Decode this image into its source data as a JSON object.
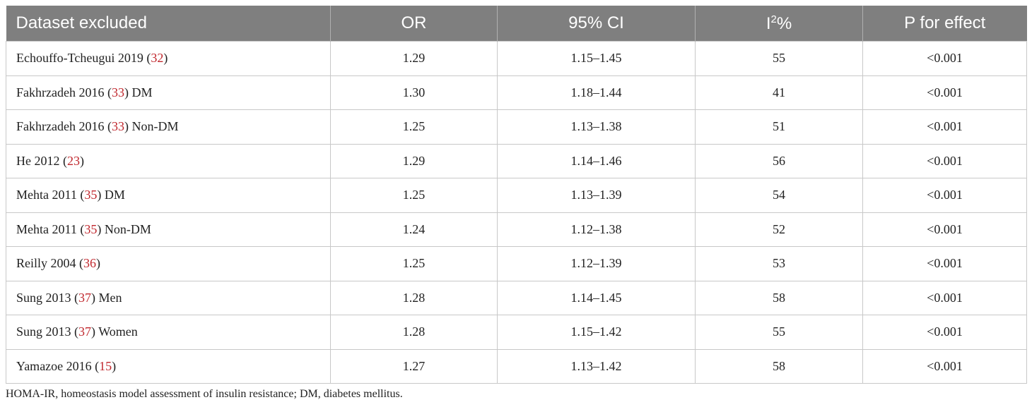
{
  "table": {
    "header": [
      "Dataset excluded",
      "OR",
      "95% CI",
      {
        "base": "I",
        "sup": "2",
        "tail": "%"
      },
      "P for effect"
    ],
    "rows": [
      [
        {
          "study": "Echouffo-Tcheugui 2019",
          "ref": "(32)"
        },
        "1.29",
        "1.15–1.45",
        "55",
        "<0.001"
      ],
      [
        {
          "study": "Fakhrzadeh 2016",
          "ref": "(33)",
          "group": "DM"
        },
        "1.30",
        "1.18–1.44",
        "41",
        "<0.001"
      ],
      [
        {
          "study": "Fakhrzadeh 2016",
          "ref": "(33)",
          "group": "Non-DM"
        },
        "1.25",
        "1.13–1.38",
        "51",
        "<0.001"
      ],
      [
        {
          "study": "He 2012",
          "ref": "(23)"
        },
        "1.29",
        "1.14–1.46",
        "56",
        "<0.001"
      ],
      [
        {
          "study": "Mehta 2011",
          "ref": "(35)",
          "group": "DM"
        },
        "1.25",
        "1.13–1.39",
        "54",
        "<0.001"
      ],
      [
        {
          "study": "Mehta 2011",
          "ref": "(35)",
          "group": "Non-DM"
        },
        "1.24",
        "1.12–1.38",
        "52",
        "<0.001"
      ],
      [
        {
          "study": "Reilly 2004",
          "ref": "(36)"
        },
        "1.25",
        "1.12–1.39",
        "53",
        "<0.001"
      ],
      [
        {
          "study": "Sung 2013",
          "ref": "(37)",
          "group": "Men"
        },
        "1.28",
        "1.14–1.45",
        "58",
        "<0.001"
      ],
      [
        {
          "study": "Sung 2013",
          "ref": "(37)",
          "group": "Women"
        },
        "1.28",
        "1.15–1.42",
        "55",
        "<0.001"
      ],
      [
        {
          "study": "Yamazoe 2016",
          "ref": "(15)"
        },
        "1.27",
        "1.13–1.42",
        "58",
        "<0.001"
      ]
    ],
    "footnote": "HOMA-IR, homeostasis model assessment of insulin resistance; DM, diabetes mellitus."
  }
}
